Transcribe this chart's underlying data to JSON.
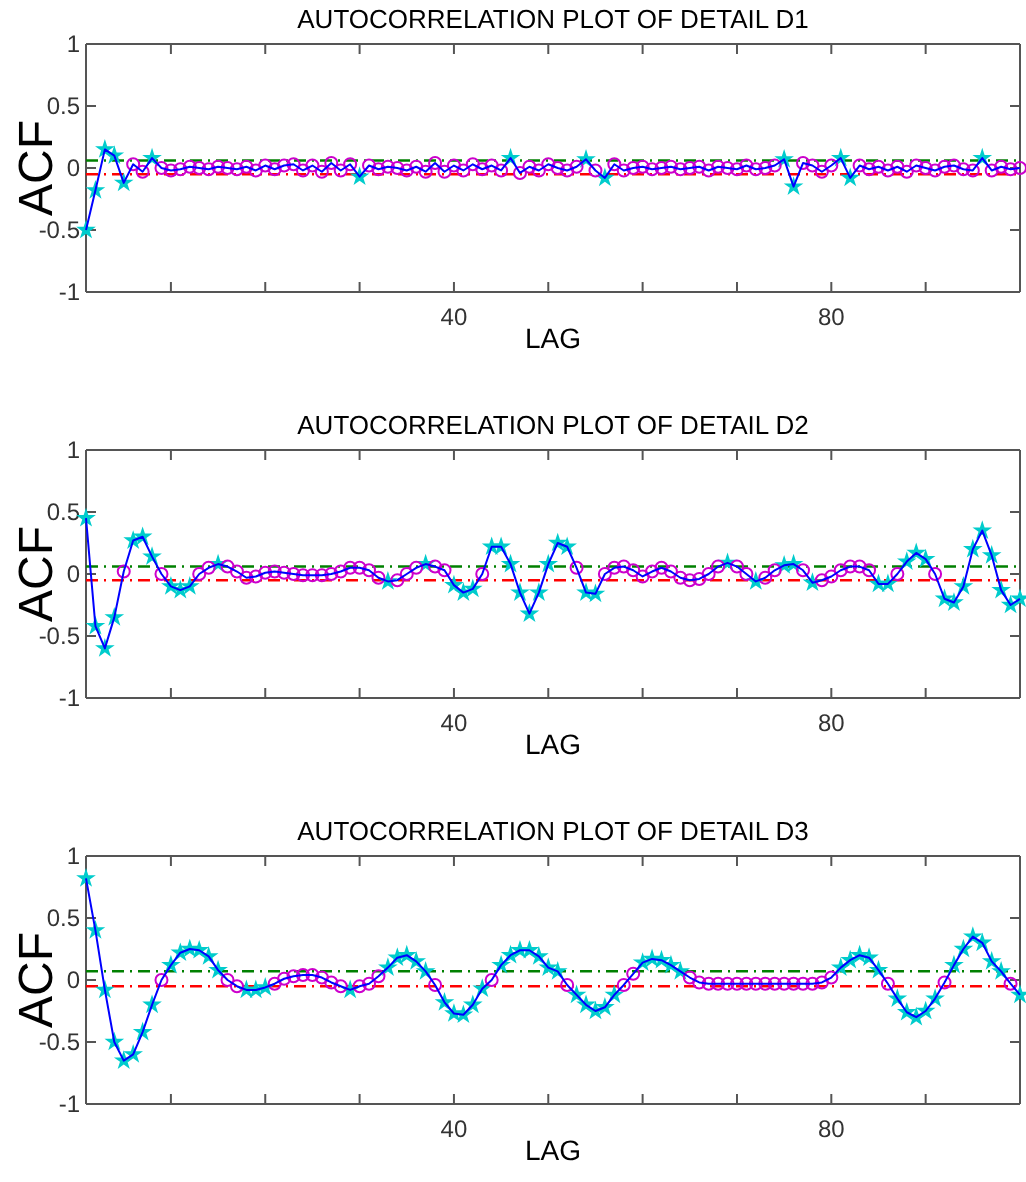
{
  "chart_data": [
    {
      "type": "line",
      "title": "AUTOCORRELATION PLOT OF DETAIL D1",
      "xlabel": "LAG",
      "ylabel": "ACF",
      "xlim": [
        1,
        100
      ],
      "ylim": [
        -1,
        1
      ],
      "xticks": [
        {
          "value": 10,
          "label": null
        },
        {
          "value": 20,
          "label": null
        },
        {
          "value": 30,
          "label": null
        },
        {
          "value": 40,
          "label": "40"
        },
        {
          "value": 50,
          "label": null
        },
        {
          "value": 60,
          "label": null
        },
        {
          "value": 70,
          "label": null
        },
        {
          "value": 80,
          "label": "80"
        },
        {
          "value": 90,
          "label": null
        }
      ],
      "yticks": [
        -1,
        -0.5,
        0,
        0.5,
        1
      ],
      "ref_lines": [
        {
          "axis": "y",
          "value": 0.06,
          "color": "#008000",
          "line_style": "dashed"
        },
        {
          "axis": "y",
          "value": -0.05,
          "color": "#ff0000",
          "line_style": "dashed"
        }
      ],
      "series": [
        {
          "type": "line",
          "color": "#0000ff",
          "marker": "none",
          "x": [
            1,
            2,
            3,
            4,
            5,
            6,
            7,
            8,
            9,
            10,
            11,
            12,
            13,
            14,
            15,
            16,
            17,
            18,
            19,
            20,
            21,
            22,
            23,
            24,
            25,
            26,
            27,
            28,
            29,
            30,
            31,
            32,
            33,
            34,
            35,
            36,
            37,
            38,
            39,
            40,
            41,
            42,
            43,
            44,
            45,
            46,
            47,
            48,
            49,
            50,
            51,
            52,
            53,
            54,
            55,
            56,
            57,
            58,
            59,
            60,
            61,
            62,
            63,
            64,
            65,
            66,
            67,
            68,
            69,
            70,
            71,
            72,
            73,
            74,
            75,
            76,
            77,
            78,
            79,
            80,
            81,
            82,
            83,
            84,
            85,
            86,
            87,
            88,
            89,
            90,
            91,
            92,
            93,
            94,
            95,
            96,
            97,
            98,
            99,
            100
          ],
          "values": [
            -0.5,
            -0.18,
            0.15,
            0.1,
            -0.12,
            0.03,
            -0.03,
            0.08,
            0.0,
            -0.02,
            -0.01,
            0.01,
            0.0,
            -0.01,
            0.01,
            0.0,
            -0.01,
            0.01,
            -0.02,
            0.02,
            -0.01,
            0.02,
            0.03,
            -0.02,
            0.02,
            -0.03,
            0.04,
            -0.02,
            0.03,
            -0.07,
            0.02,
            -0.01,
            0.01,
            0.0,
            -0.02,
            0.01,
            -0.03,
            0.04,
            -0.03,
            0.02,
            -0.02,
            0.03,
            -0.01,
            0.02,
            -0.02,
            0.08,
            -0.04,
            0.01,
            -0.02,
            0.03,
            0.0,
            -0.02,
            0.01,
            0.07,
            -0.02,
            -0.08,
            0.03,
            -0.02,
            0.0,
            0.01,
            -0.01,
            0.0,
            0.01,
            -0.01,
            0.0,
            0.01,
            -0.02,
            0.01,
            0.0,
            -0.01,
            0.02,
            -0.01,
            0.0,
            0.02,
            0.07,
            -0.15,
            0.04,
            0.02,
            -0.03,
            0.02,
            0.08,
            -0.08,
            0.02,
            -0.01,
            0.01,
            -0.02,
            0.01,
            -0.03,
            0.02,
            0.0,
            -0.02,
            0.01,
            0.02,
            -0.01,
            -0.02,
            0.08,
            -0.02,
            0.01,
            -0.01,
            0.0
          ]
        },
        {
          "type": "scatter",
          "color": "#00cccc",
          "marker": "star",
          "x": [
            1,
            2,
            3,
            4,
            5,
            8,
            30,
            46,
            54,
            56,
            75,
            76,
            81,
            82,
            96
          ],
          "values": [
            -0.5,
            -0.18,
            0.15,
            0.1,
            -0.12,
            0.08,
            -0.07,
            0.08,
            0.07,
            -0.08,
            0.07,
            -0.15,
            0.08,
            -0.08,
            0.08
          ]
        },
        {
          "type": "scatter",
          "color": "#cc00cc",
          "marker": "circle",
          "x": [
            6,
            7,
            9,
            10,
            11,
            12,
            13,
            14,
            15,
            16,
            17,
            18,
            19,
            20,
            21,
            22,
            23,
            24,
            25,
            26,
            27,
            28,
            29,
            31,
            32,
            33,
            34,
            35,
            36,
            37,
            38,
            39,
            40,
            41,
            42,
            43,
            44,
            45,
            47,
            48,
            49,
            50,
            51,
            52,
            53,
            55,
            57,
            58,
            59,
            60,
            61,
            62,
            63,
            64,
            65,
            66,
            67,
            68,
            69,
            70,
            71,
            72,
            73,
            74,
            77,
            78,
            79,
            80,
            83,
            84,
            85,
            86,
            87,
            88,
            89,
            90,
            91,
            92,
            93,
            94,
            95,
            97,
            98,
            99,
            100
          ],
          "values": [
            0.03,
            -0.03,
            0.0,
            -0.02,
            -0.01,
            0.01,
            0.0,
            -0.01,
            0.01,
            0.0,
            -0.01,
            0.01,
            -0.02,
            0.02,
            -0.01,
            0.02,
            0.03,
            -0.02,
            0.02,
            -0.03,
            0.04,
            -0.02,
            0.03,
            0.02,
            -0.01,
            0.01,
            0.0,
            -0.02,
            0.01,
            -0.03,
            0.04,
            -0.03,
            0.02,
            -0.02,
            0.03,
            -0.01,
            0.02,
            -0.02,
            -0.04,
            0.01,
            -0.02,
            0.03,
            0.0,
            -0.02,
            0.01,
            -0.02,
            0.03,
            -0.02,
            0.0,
            0.01,
            -0.01,
            0.0,
            0.01,
            -0.01,
            0.0,
            0.01,
            -0.02,
            0.01,
            0.0,
            -0.01,
            0.02,
            -0.01,
            0.0,
            0.02,
            0.04,
            0.02,
            -0.03,
            0.02,
            0.02,
            -0.01,
            0.01,
            -0.02,
            0.01,
            -0.03,
            0.02,
            0.0,
            -0.02,
            0.01,
            0.02,
            -0.01,
            -0.02,
            -0.02,
            0.01,
            -0.01,
            0.0
          ]
        }
      ]
    },
    {
      "type": "line",
      "title": "AUTOCORRELATION PLOT OF DETAIL D2",
      "xlabel": "LAG",
      "ylabel": "ACF",
      "xlim": [
        1,
        100
      ],
      "ylim": [
        -1,
        1
      ],
      "xticks": [
        {
          "value": 10,
          "label": null
        },
        {
          "value": 20,
          "label": null
        },
        {
          "value": 30,
          "label": null
        },
        {
          "value": 40,
          "label": "40"
        },
        {
          "value": 50,
          "label": null
        },
        {
          "value": 60,
          "label": null
        },
        {
          "value": 70,
          "label": null
        },
        {
          "value": 80,
          "label": "80"
        },
        {
          "value": 90,
          "label": null
        }
      ],
      "yticks": [
        -1,
        -0.5,
        0,
        0.5,
        1
      ],
      "ref_lines": [
        {
          "axis": "y",
          "value": 0.06,
          "color": "#008000",
          "line_style": "dashed"
        },
        {
          "axis": "y",
          "value": -0.05,
          "color": "#ff0000",
          "line_style": "dashed"
        }
      ],
      "series": [
        {
          "type": "line",
          "color": "#0000ff",
          "marker": "none",
          "x": [
            1,
            2,
            3,
            4,
            5,
            6,
            7,
            8,
            9,
            10,
            11,
            12,
            13,
            14,
            15,
            16,
            17,
            18,
            19,
            20,
            21,
            22,
            23,
            24,
            25,
            26,
            27,
            28,
            29,
            30,
            31,
            32,
            33,
            34,
            35,
            36,
            37,
            38,
            39,
            40,
            41,
            42,
            43,
            44,
            45,
            46,
            47,
            48,
            49,
            50,
            51,
            52,
            53,
            54,
            55,
            56,
            57,
            58,
            59,
            60,
            61,
            62,
            63,
            64,
            65,
            66,
            67,
            68,
            69,
            70,
            71,
            72,
            73,
            74,
            75,
            76,
            77,
            78,
            79,
            80,
            81,
            82,
            83,
            84,
            85,
            86,
            87,
            88,
            89,
            90,
            91,
            92,
            93,
            94,
            95,
            96,
            97,
            98,
            99,
            100
          ],
          "values": [
            0.45,
            -0.42,
            -0.6,
            -0.35,
            0.02,
            0.27,
            0.3,
            0.14,
            0.0,
            -0.1,
            -0.13,
            -0.1,
            0.0,
            0.05,
            0.08,
            0.06,
            0.02,
            -0.03,
            -0.02,
            0.01,
            0.02,
            0.01,
            0.0,
            -0.01,
            -0.01,
            -0.01,
            0.0,
            0.02,
            0.05,
            0.05,
            0.03,
            -0.03,
            -0.06,
            -0.05,
            0.0,
            0.05,
            0.08,
            0.06,
            0.03,
            -0.09,
            -0.15,
            -0.12,
            0.0,
            0.22,
            0.22,
            0.08,
            -0.15,
            -0.32,
            -0.15,
            0.08,
            0.25,
            0.22,
            0.05,
            -0.15,
            -0.16,
            0.0,
            0.05,
            0.06,
            0.03,
            -0.02,
            0.02,
            0.05,
            0.02,
            -0.03,
            -0.05,
            -0.04,
            0.0,
            0.06,
            0.09,
            0.06,
            0.0,
            -0.06,
            -0.03,
            0.03,
            0.07,
            0.08,
            0.03,
            -0.07,
            -0.05,
            -0.02,
            0.03,
            0.06,
            0.06,
            0.03,
            -0.08,
            -0.08,
            0.0,
            0.1,
            0.17,
            0.12,
            0.0,
            -0.2,
            -0.23,
            -0.1,
            0.2,
            0.35,
            0.15,
            -0.13,
            -0.25,
            -0.2
          ]
        },
        {
          "type": "scatter",
          "color": "#00cccc",
          "marker": "star",
          "x": [
            1,
            2,
            3,
            4,
            6,
            7,
            8,
            10,
            11,
            12,
            15,
            33,
            37,
            40,
            41,
            42,
            44,
            45,
            46,
            47,
            48,
            49,
            50,
            51,
            52,
            54,
            55,
            69,
            72,
            75,
            76,
            78,
            85,
            86,
            88,
            89,
            90,
            92,
            93,
            94,
            95,
            96,
            97,
            98,
            99,
            100
          ],
          "values": [
            0.45,
            -0.42,
            -0.6,
            -0.35,
            0.27,
            0.3,
            0.14,
            -0.1,
            -0.13,
            -0.1,
            0.08,
            -0.06,
            0.08,
            -0.09,
            -0.15,
            -0.12,
            0.22,
            0.22,
            0.08,
            -0.15,
            -0.32,
            -0.15,
            0.08,
            0.25,
            0.22,
            -0.15,
            -0.16,
            0.09,
            -0.06,
            0.07,
            0.08,
            -0.07,
            -0.08,
            -0.08,
            0.1,
            0.17,
            0.12,
            -0.2,
            -0.23,
            -0.1,
            0.2,
            0.35,
            0.15,
            -0.13,
            -0.25,
            -0.2
          ]
        },
        {
          "type": "scatter",
          "color": "#cc00cc",
          "marker": "circle",
          "x": [
            5,
            9,
            13,
            14,
            16,
            17,
            18,
            19,
            20,
            21,
            22,
            23,
            24,
            25,
            26,
            27,
            28,
            29,
            30,
            31,
            32,
            34,
            35,
            36,
            38,
            39,
            43,
            53,
            56,
            57,
            58,
            59,
            60,
            61,
            62,
            63,
            64,
            65,
            66,
            67,
            68,
            70,
            71,
            73,
            74,
            77,
            79,
            80,
            81,
            82,
            83,
            84,
            87,
            91
          ],
          "values": [
            0.02,
            0.0,
            0.0,
            0.05,
            0.06,
            0.02,
            -0.03,
            -0.02,
            0.01,
            0.02,
            0.01,
            0.0,
            -0.01,
            -0.01,
            -0.01,
            0.0,
            0.02,
            0.05,
            0.05,
            0.03,
            -0.03,
            -0.05,
            0.0,
            0.05,
            0.06,
            0.03,
            0.0,
            0.05,
            0.0,
            0.05,
            0.06,
            0.03,
            -0.02,
            0.02,
            0.05,
            0.02,
            -0.03,
            -0.05,
            -0.04,
            0.0,
            0.06,
            0.06,
            0.0,
            -0.03,
            0.03,
            0.03,
            -0.05,
            -0.02,
            0.03,
            0.06,
            0.06,
            0.03,
            0.0,
            0.0
          ]
        }
      ]
    },
    {
      "type": "line",
      "title": "AUTOCORRELATION PLOT OF DETAIL D3",
      "xlabel": "LAG",
      "ylabel": "ACF",
      "xlim": [
        1,
        100
      ],
      "ylim": [
        -1,
        1
      ],
      "xticks": [
        {
          "value": 10,
          "label": null
        },
        {
          "value": 20,
          "label": null
        },
        {
          "value": 30,
          "label": null
        },
        {
          "value": 40,
          "label": "40"
        },
        {
          "value": 50,
          "label": null
        },
        {
          "value": 60,
          "label": null
        },
        {
          "value": 70,
          "label": null
        },
        {
          "value": 80,
          "label": "80"
        },
        {
          "value": 90,
          "label": null
        }
      ],
      "yticks": [
        -1,
        -0.5,
        0,
        0.5,
        1
      ],
      "ref_lines": [
        {
          "axis": "y",
          "value": 0.07,
          "color": "#008000",
          "line_style": "dashed"
        },
        {
          "axis": "y",
          "value": -0.05,
          "color": "#ff0000",
          "line_style": "dashed"
        }
      ],
      "series": [
        {
          "type": "line",
          "color": "#0000ff",
          "marker": "none",
          "x": [
            1,
            2,
            3,
            4,
            5,
            6,
            7,
            8,
            9,
            10,
            11,
            12,
            13,
            14,
            15,
            16,
            17,
            18,
            19,
            20,
            21,
            22,
            23,
            24,
            25,
            26,
            27,
            28,
            29,
            30,
            31,
            32,
            33,
            34,
            35,
            36,
            37,
            38,
            39,
            40,
            41,
            42,
            43,
            44,
            45,
            46,
            47,
            48,
            49,
            50,
            51,
            52,
            53,
            54,
            55,
            56,
            57,
            58,
            59,
            60,
            61,
            62,
            63,
            64,
            65,
            66,
            67,
            68,
            69,
            70,
            71,
            72,
            73,
            74,
            75,
            76,
            77,
            78,
            79,
            80,
            81,
            82,
            83,
            84,
            85,
            86,
            87,
            88,
            89,
            90,
            91,
            92,
            93,
            94,
            95,
            96,
            97,
            98,
            99,
            100
          ],
          "values": [
            0.82,
            0.4,
            -0.08,
            -0.5,
            -0.65,
            -0.6,
            -0.42,
            -0.2,
            0.0,
            0.12,
            0.22,
            0.25,
            0.24,
            0.19,
            0.08,
            0.0,
            -0.05,
            -0.08,
            -0.08,
            -0.06,
            -0.03,
            0.01,
            0.03,
            0.04,
            0.04,
            0.02,
            -0.02,
            -0.05,
            -0.08,
            -0.05,
            -0.03,
            0.03,
            0.1,
            0.18,
            0.2,
            0.15,
            0.07,
            -0.04,
            -0.18,
            -0.27,
            -0.28,
            -0.2,
            -0.07,
            0.0,
            0.12,
            0.2,
            0.24,
            0.24,
            0.19,
            0.1,
            0.07,
            -0.04,
            -0.12,
            -0.2,
            -0.25,
            -0.22,
            -0.12,
            -0.04,
            0.05,
            0.14,
            0.17,
            0.16,
            0.12,
            0.07,
            0.02,
            -0.02,
            -0.03,
            -0.03,
            -0.03,
            -0.03,
            -0.03,
            -0.03,
            -0.03,
            -0.03,
            -0.03,
            -0.03,
            -0.03,
            -0.03,
            -0.02,
            0.02,
            0.1,
            0.16,
            0.2,
            0.18,
            0.08,
            -0.03,
            -0.15,
            -0.26,
            -0.3,
            -0.25,
            -0.15,
            -0.02,
            0.12,
            0.25,
            0.35,
            0.3,
            0.15,
            0.07,
            -0.03,
            -0.12
          ]
        },
        {
          "type": "scatter",
          "color": "#00cccc",
          "marker": "star",
          "x": [
            1,
            2,
            3,
            4,
            5,
            6,
            7,
            8,
            10,
            11,
            12,
            13,
            14,
            15,
            18,
            19,
            20,
            29,
            33,
            34,
            35,
            36,
            37,
            39,
            40,
            41,
            42,
            43,
            45,
            46,
            47,
            48,
            49,
            50,
            51,
            53,
            54,
            55,
            56,
            57,
            60,
            61,
            62,
            63,
            64,
            81,
            82,
            83,
            84,
            85,
            87,
            88,
            89,
            90,
            91,
            93,
            94,
            95,
            96,
            97,
            98,
            100
          ],
          "values": [
            0.82,
            0.4,
            -0.08,
            -0.5,
            -0.65,
            -0.6,
            -0.42,
            -0.2,
            0.12,
            0.22,
            0.25,
            0.24,
            0.19,
            0.08,
            -0.08,
            -0.08,
            -0.06,
            -0.08,
            0.1,
            0.18,
            0.2,
            0.15,
            0.07,
            -0.18,
            -0.27,
            -0.28,
            -0.2,
            -0.07,
            0.12,
            0.2,
            0.24,
            0.24,
            0.19,
            0.1,
            0.07,
            -0.12,
            -0.2,
            -0.25,
            -0.22,
            -0.12,
            0.14,
            0.17,
            0.16,
            0.12,
            0.07,
            0.1,
            0.16,
            0.2,
            0.18,
            0.08,
            -0.15,
            -0.26,
            -0.3,
            -0.25,
            -0.15,
            0.12,
            0.25,
            0.35,
            0.3,
            0.15,
            0.07,
            -0.12
          ]
        },
        {
          "type": "scatter",
          "color": "#cc00cc",
          "marker": "circle",
          "x": [
            9,
            16,
            17,
            21,
            22,
            23,
            24,
            25,
            26,
            27,
            28,
            30,
            31,
            32,
            38,
            44,
            52,
            58,
            59,
            65,
            66,
            67,
            68,
            69,
            70,
            71,
            72,
            73,
            74,
            75,
            76,
            77,
            78,
            79,
            80,
            86,
            92,
            99
          ],
          "values": [
            0.0,
            0.0,
            -0.05,
            -0.03,
            0.01,
            0.03,
            0.04,
            0.04,
            0.02,
            -0.02,
            -0.05,
            -0.05,
            -0.03,
            0.03,
            -0.04,
            0.0,
            -0.04,
            -0.04,
            0.05,
            0.02,
            -0.02,
            -0.03,
            -0.03,
            -0.03,
            -0.03,
            -0.03,
            -0.03,
            -0.03,
            -0.03,
            -0.03,
            -0.03,
            -0.03,
            -0.03,
            -0.02,
            0.02,
            -0.03,
            -0.02,
            -0.03
          ]
        }
      ]
    }
  ]
}
